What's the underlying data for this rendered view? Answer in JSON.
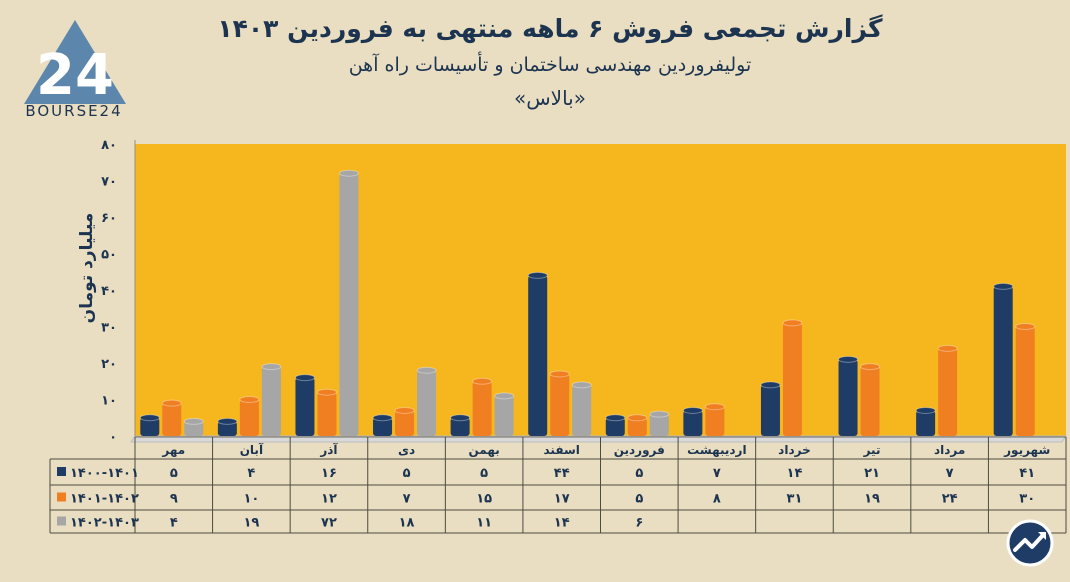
{
  "header": {
    "title": "گزارش تجمعی فروش ۶ ماهه منتهی به فروردین ۱۴۰۳",
    "subtitle": "تولیفروردین مهندسی ساختمان و تأسیسات راه آهن",
    "ticker": "«بالاس»"
  },
  "logo": {
    "text": "BOURSE24",
    "mark": "24"
  },
  "colors": {
    "background": "#e9dec2",
    "plot": "#f6b61d",
    "series": [
      "#1e3c66",
      "#f07f22",
      "#a6a6a6"
    ]
  },
  "chart_data": {
    "type": "bar",
    "ylabel": "میلیارد تومان",
    "ylim": [
      0,
      80
    ],
    "yticks": [
      "۰",
      "۱۰",
      "۲۰",
      "۳۰",
      "۴۰",
      "۵۰",
      "۶۰",
      "۷۰",
      "۸۰"
    ],
    "categories": [
      "مهر",
      "آبان",
      "آذر",
      "دی",
      "بهمن",
      "اسفند",
      "فروردین",
      "اردیبهشت",
      "خرداد",
      "تیر",
      "مرداد",
      "شهریور"
    ],
    "series": [
      {
        "name": "۱۴۰۰-۱۴۰۱",
        "values": [
          5,
          4,
          16,
          5,
          5,
          44,
          5,
          7,
          14,
          21,
          7,
          41
        ],
        "labels": [
          "۵",
          "۴",
          "۱۶",
          "۵",
          "۵",
          "۴۴",
          "۵",
          "۷",
          "۱۴",
          "۲۱",
          "۷",
          "۴۱"
        ]
      },
      {
        "name": "۱۴۰۱-۱۴۰۲",
        "values": [
          9,
          10,
          12,
          7,
          15,
          17,
          5,
          8,
          31,
          19,
          24,
          30
        ],
        "labels": [
          "۹",
          "۱۰",
          "۱۲",
          "۷",
          "۱۵",
          "۱۷",
          "۵",
          "۸",
          "۳۱",
          "۱۹",
          "۲۴",
          "۳۰"
        ]
      },
      {
        "name": "۱۴۰۲-۱۴۰۳",
        "values": [
          4,
          19,
          72,
          18,
          11,
          14,
          6,
          null,
          null,
          null,
          null,
          null
        ],
        "labels": [
          "۴",
          "۱۹",
          "۷۲",
          "۱۸",
          "۱۱",
          "۱۴",
          "۶",
          "",
          "",
          "",
          "",
          ""
        ]
      }
    ],
    "legend": "table-left",
    "grid": false
  }
}
